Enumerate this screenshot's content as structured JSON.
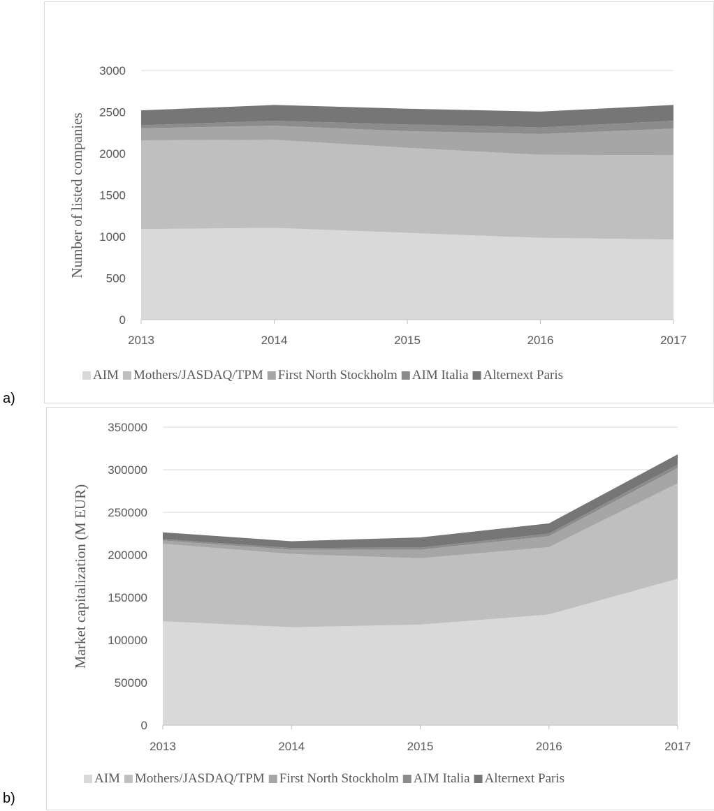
{
  "panels": {
    "a": {
      "label": "a)"
    },
    "b": {
      "label": "b)"
    }
  },
  "colors": {
    "gridline": "#d9d9d9",
    "axis": "#bfbfbf",
    "AIM": "#d9d9d9",
    "Mothers/JASDAQ/TPM": "#bfbfbf",
    "First North Stockholm": "#a6a6a6",
    "AIM Italia": "#8c8c8c",
    "Alternext Paris": "#767676"
  },
  "chart_data": [
    {
      "type": "area",
      "stacked": true,
      "title": "",
      "xlabel": "",
      "ylabel": "Number of listed companies",
      "x": [
        "2013",
        "2014",
        "2015",
        "2016",
        "2017"
      ],
      "ylim": [
        0,
        3000
      ],
      "yticks": [
        "0",
        "500",
        "1000",
        "1500",
        "2000",
        "2500",
        "3000"
      ],
      "grid": true,
      "legend": "bottom",
      "series": [
        {
          "name": "AIM",
          "values": [
            1090,
            1105,
            1045,
            985,
            965
          ]
        },
        {
          "name": "Mothers/JASDAQ/TPM",
          "values": [
            1070,
            1060,
            1025,
            1000,
            1015
          ]
        },
        {
          "name": "First North Stockholm",
          "values": [
            145,
            170,
            200,
            250,
            320
          ]
        },
        {
          "name": "AIM Italia",
          "values": [
            35,
            60,
            80,
            80,
            95
          ]
        },
        {
          "name": "Alternext Paris",
          "values": [
            180,
            190,
            190,
            190,
            190
          ]
        }
      ]
    },
    {
      "type": "area",
      "stacked": true,
      "title": "",
      "xlabel": "",
      "ylabel": "Market capitalization (M EUR)",
      "x": [
        "2013",
        "2014",
        "2015",
        "2016",
        "2017"
      ],
      "ylim": [
        0,
        350000
      ],
      "yticks": [
        "0",
        "50000",
        "100000",
        "150000",
        "200000",
        "250000",
        "300000",
        "350000"
      ],
      "grid": true,
      "legend": "bottom",
      "series": [
        {
          "name": "AIM",
          "values": [
            122000,
            115000,
            118000,
            130000,
            172000
          ]
        },
        {
          "name": "Mothers/JASDAQ/TPM",
          "values": [
            91000,
            86000,
            78000,
            79000,
            112000
          ]
        },
        {
          "name": "First North Stockholm",
          "values": [
            4000,
            5000,
            10000,
            13000,
            18000
          ]
        },
        {
          "name": "AIM Italia",
          "values": [
            1500,
            2000,
            2500,
            3000,
            4000
          ]
        },
        {
          "name": "Alternext Paris",
          "values": [
            8000,
            8000,
            12000,
            12000,
            12000
          ]
        }
      ]
    }
  ]
}
